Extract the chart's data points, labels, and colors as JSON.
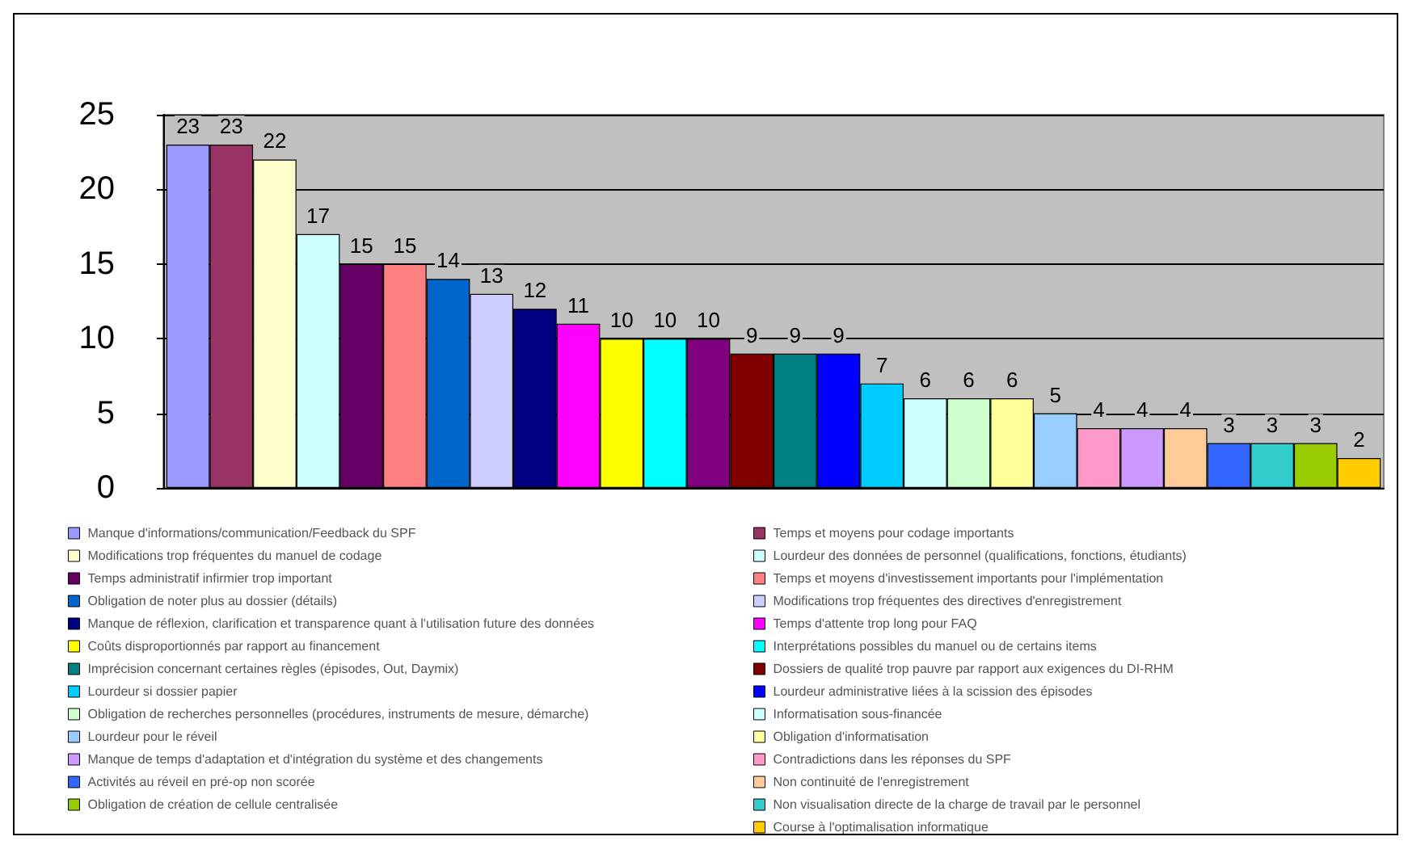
{
  "chart_data": {
    "type": "bar",
    "categories": [
      null
    ],
    "ylim": [
      0,
      25
    ],
    "yticks": [
      0,
      5,
      10,
      15,
      20,
      25
    ],
    "grid": "y",
    "data_labels": true,
    "legend": "bottom",
    "series": [
      {
        "name": "Manque d'informations/communication/Feedback du SPF",
        "color": "#9999ff",
        "values": [
          23
        ]
      },
      {
        "name": "Temps et moyens pour codage importants",
        "color": "#993366",
        "values": [
          23
        ]
      },
      {
        "name": "Modifications trop fréquentes du manuel de codage",
        "color": "#ffffcc",
        "values": [
          22
        ]
      },
      {
        "name": "Lourdeur des données de personnel (qualifications, fonctions, étudiants)",
        "color": "#ccffff",
        "values": [
          17
        ]
      },
      {
        "name": "Temps administratif infirmier trop important",
        "color": "#660066",
        "values": [
          15
        ]
      },
      {
        "name": "Temps et moyens d'investissement importants pour l'implémentation",
        "color": "#ff8080",
        "values": [
          15
        ]
      },
      {
        "name": "Obligation de noter plus au dossier (détails)",
        "color": "#0066cc",
        "values": [
          14
        ]
      },
      {
        "name": "Modifications trop fréquentes des directives d'enregistrement",
        "color": "#ccccff",
        "values": [
          13
        ]
      },
      {
        "name": "Manque de réflexion, clarification et transparence quant à l'utilisation future des données",
        "color": "#000080",
        "values": [
          12
        ]
      },
      {
        "name": "Temps d'attente trop long pour FAQ",
        "color": "#ff00ff",
        "values": [
          11
        ]
      },
      {
        "name": "Coûts disproportionnés par rapport au financement",
        "color": "#ffff00",
        "values": [
          10
        ]
      },
      {
        "name": "Interprétations possibles du manuel ou de certains items",
        "color": "#00ffff",
        "values": [
          10
        ]
      },
      {
        "color": "#800080",
        "values": [
          10
        ]
      },
      {
        "name": "Dossiers de qualité trop pauvre par rapport aux exigences du DI-RHM",
        "color": "#800000",
        "values": [
          9
        ]
      },
      {
        "name": "Imprécision concernant certaines règles (épisodes, Out, Daymix)",
        "color": "#008080",
        "values": [
          9
        ]
      },
      {
        "name": "Lourdeur administrative liées à la scission des épisodes",
        "color": "#0000ff",
        "values": [
          9
        ]
      },
      {
        "name": "Lourdeur si dossier papier",
        "color": "#00ccff",
        "values": [
          7
        ]
      },
      {
        "name": "Informatisation sous-financée",
        "color": "#ccffff",
        "values": [
          6
        ]
      },
      {
        "name": "Obligation de recherches personnelles (procédures, instruments de mesure, démarche)",
        "color": "#ccffcc",
        "values": [
          6
        ]
      },
      {
        "name": "Obligation d'informatisation",
        "color": "#ffff99",
        "values": [
          6
        ]
      },
      {
        "name": "Lourdeur pour le réveil",
        "color": "#99ccff",
        "values": [
          5
        ]
      },
      {
        "name": "Contradictions dans les réponses du SPF",
        "color": "#ff99cc",
        "values": [
          4
        ]
      },
      {
        "name": "Manque de temps d'adaptation et d'intégration du système et des changements",
        "color": "#cc99ff",
        "values": [
          4
        ]
      },
      {
        "name": "Non continuité de l'enregistrement",
        "color": "#ffcc99",
        "values": [
          4
        ]
      },
      {
        "name": "Activités au réveil en pré-op non scorée",
        "color": "#3366ff",
        "values": [
          3
        ]
      },
      {
        "name": "Non visualisation directe de la charge de travail par le personnel",
        "color": "#33cccc",
        "values": [
          3
        ]
      },
      {
        "name": "Obligation de création de cellule centralisée",
        "color": "#99cc00",
        "values": [
          3
        ]
      },
      {
        "name": "Course à l'optimalisation informatique",
        "color": "#ffcc00",
        "values": [
          2
        ]
      }
    ]
  }
}
